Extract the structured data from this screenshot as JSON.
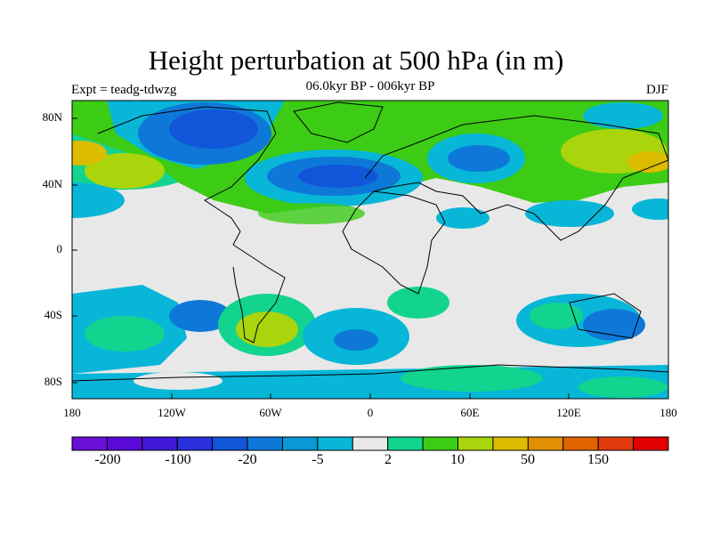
{
  "title": "Height perturbation at 500 hPa (in m)",
  "expt_label": "Expt = teadg-tdwzg",
  "subtitle": "06.0kyr BP - 006kyr BP",
  "season": "DJF",
  "lat_ticks": [
    "80N",
    "40N",
    "0",
    "40S",
    "80S"
  ],
  "lon_ticks": [
    "180",
    "120W",
    "60W",
    "0",
    "60E",
    "120E",
    "180"
  ],
  "colorbar": {
    "labels": [
      "-200",
      "-100",
      "-20",
      "-5",
      "2",
      "10",
      "50",
      "150"
    ],
    "colors": [
      "#6a0fd6",
      "#5a0ad8",
      "#3f18d8",
      "#2a30dc",
      "#1155d8",
      "#0e78d8",
      "#0a98d6",
      "#08b6d8",
      "#e8e8e8",
      "#12d48e",
      "#3ccc16",
      "#aad40c",
      "#dcbc00",
      "#e09000",
      "#e06400",
      "#e03c10",
      "#e00000"
    ]
  },
  "map_colors": {
    "background": "#e8e8e8",
    "coast": "#000000"
  }
}
